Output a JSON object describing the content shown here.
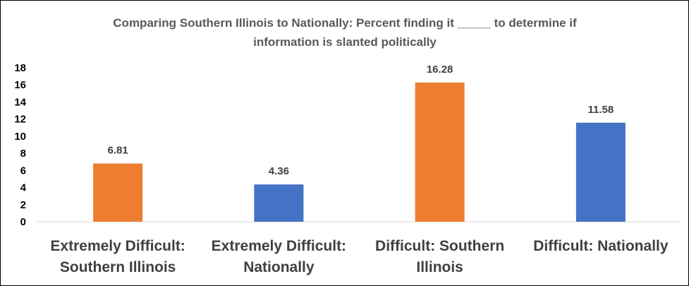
{
  "chart_data": {
    "type": "bar",
    "title": "Comparing Southern Illinois to Nationally: Percent finding it _____ to determine if information is slanted politically",
    "title_lines": [
      "Comparing Southern Illinois to Nationally: Percent finding it _____ to determine if",
      "information is slanted politically"
    ],
    "categories": [
      "Extremely Difficult: Southern Illinois",
      "Extremely Difficult: Nationally",
      "Difficult: Southern Illinois",
      "Difficult: Nationally"
    ],
    "category_label_lines": [
      [
        "Extremely Difficult:",
        "Southern Illinois"
      ],
      [
        "Extremely Difficult:",
        "Nationally"
      ],
      [
        "Difficult: Southern",
        "Illinois"
      ],
      [
        "Difficult: Nationally"
      ]
    ],
    "values": [
      6.81,
      4.36,
      16.28,
      11.58
    ],
    "value_labels": [
      "6.81",
      "4.36",
      "16.28",
      "11.58"
    ],
    "bar_colors": [
      "#ED7D31",
      "#4472C4",
      "#ED7D31",
      "#4472C4"
    ],
    "y_ticks": [
      "0",
      "2",
      "4",
      "6",
      "8",
      "10",
      "12",
      "14",
      "16",
      "18"
    ],
    "ylim": [
      0,
      18
    ],
    "xlabel": "",
    "ylabel": "",
    "grid": false,
    "legend": "none"
  }
}
